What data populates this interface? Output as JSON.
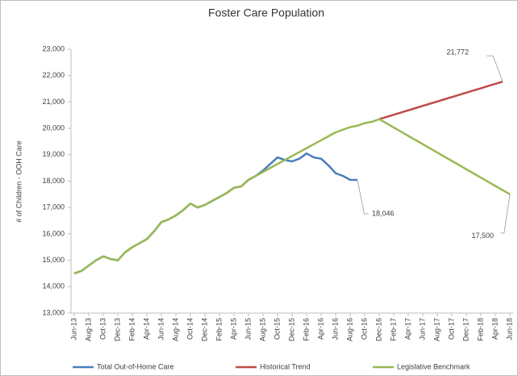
{
  "chart_data": {
    "type": "line",
    "title": "Foster Care Population",
    "y_label": "# of Children - OOH Care",
    "categories": [
      "Jun-13",
      null,
      "Aug-13",
      null,
      "Oct-13",
      null,
      "Dec-13",
      null,
      "Feb-14",
      null,
      "Apr-14",
      null,
      "Jun-14",
      null,
      "Aug-14",
      null,
      "Oct-14",
      null,
      "Dec-14",
      null,
      "Feb-15",
      null,
      "Apr-15",
      null,
      "Jun-15",
      null,
      "Aug-15",
      null,
      "Oct-15",
      null,
      "Dec-15",
      null,
      "Feb-16",
      null,
      "Apr-16",
      null,
      "Jun-16",
      null,
      "Aug-16",
      null,
      "Oct-16",
      null,
      "Dec-16",
      null,
      "Feb-17",
      null,
      "Apr-17",
      null,
      "Jun-17",
      null,
      "Aug-17",
      null,
      "Oct-17",
      null,
      "Dec-17",
      null,
      "Feb-18",
      null,
      "Apr-18",
      null,
      "Jun-18"
    ],
    "series": [
      {
        "name": "Total Out-of-Home Care",
        "color": "#4a7ebb",
        "values": [
          14500,
          14600,
          14800,
          15000,
          15150,
          15050,
          15000,
          15300,
          15500,
          15650,
          15800,
          16100,
          16450,
          16550,
          16700,
          16900,
          17150,
          17000,
          17100,
          17250,
          17400,
          17550,
          17750,
          17800,
          18050,
          18200,
          18400,
          18650,
          18900,
          18800,
          18750,
          18850,
          19050,
          18900,
          18850,
          18600,
          18300,
          18200,
          18050,
          18046,
          null,
          null,
          null,
          null,
          null,
          null,
          null,
          null,
          null,
          null,
          null,
          null,
          null,
          null,
          null,
          null,
          null,
          null,
          null,
          null,
          null
        ],
        "value_labels": [
          null,
          null,
          null,
          null,
          null,
          null,
          null,
          null,
          null,
          null,
          null,
          null,
          null,
          null,
          null,
          null,
          null,
          null,
          null,
          null,
          null,
          null,
          null,
          null,
          null,
          null,
          null,
          null,
          null,
          null,
          null,
          null,
          null,
          null,
          null,
          null,
          null,
          null,
          null,
          "18,046",
          null,
          null,
          null,
          null,
          null,
          null,
          null,
          null,
          null,
          null,
          null,
          null,
          null,
          null,
          null,
          null,
          null,
          null,
          null,
          null,
          null
        ]
      },
      {
        "name": "Historical Trend",
        "color": "#be4b48",
        "values": [
          null,
          null,
          null,
          null,
          null,
          null,
          null,
          null,
          null,
          null,
          null,
          null,
          null,
          null,
          null,
          null,
          null,
          null,
          null,
          null,
          null,
          null,
          null,
          null,
          null,
          null,
          null,
          null,
          null,
          null,
          null,
          null,
          null,
          null,
          null,
          null,
          null,
          null,
          null,
          null,
          null,
          null,
          20350,
          20434,
          20517,
          20601,
          20685,
          20768,
          20852,
          20936,
          21019,
          21103,
          21187,
          21270,
          21354,
          21438,
          21521,
          21605,
          21689,
          21772,
          null
        ],
        "value_labels": [
          null,
          null,
          null,
          null,
          null,
          null,
          null,
          null,
          null,
          null,
          null,
          null,
          null,
          null,
          null,
          null,
          null,
          null,
          null,
          null,
          null,
          null,
          null,
          null,
          null,
          null,
          null,
          null,
          null,
          null,
          null,
          null,
          null,
          null,
          null,
          null,
          null,
          null,
          null,
          null,
          null,
          null,
          null,
          null,
          null,
          null,
          null,
          null,
          null,
          null,
          null,
          null,
          null,
          null,
          null,
          null,
          null,
          null,
          null,
          "21,772",
          null
        ]
      },
      {
        "name": "Legislative Benchmark",
        "color": "#98b954",
        "values": [
          14500,
          14600,
          14800,
          15000,
          15150,
          15050,
          15000,
          15300,
          15500,
          15650,
          15800,
          16100,
          16450,
          16550,
          16700,
          16900,
          17150,
          17000,
          17100,
          17250,
          17400,
          17550,
          17750,
          17800,
          18050,
          18200,
          18350,
          18500,
          18650,
          18800,
          18950,
          19100,
          19250,
          19400,
          19550,
          19700,
          19850,
          19950,
          20050,
          20100,
          20200,
          20250,
          20350,
          20192,
          20033,
          19875,
          19717,
          19558,
          19400,
          19242,
          19083,
          18925,
          18767,
          18608,
          18450,
          18292,
          18133,
          17975,
          17817,
          17658,
          17500
        ],
        "value_labels": [
          null,
          null,
          null,
          null,
          null,
          null,
          null,
          null,
          null,
          null,
          null,
          null,
          null,
          null,
          null,
          null,
          null,
          null,
          null,
          null,
          null,
          null,
          null,
          null,
          null,
          null,
          null,
          null,
          null,
          null,
          null,
          null,
          null,
          null,
          null,
          null,
          null,
          null,
          null,
          null,
          null,
          null,
          null,
          null,
          null,
          null,
          null,
          null,
          null,
          null,
          null,
          null,
          null,
          null,
          null,
          null,
          null,
          null,
          null,
          null,
          "17,500"
        ]
      }
    ],
    "ylim": [
      13000,
      23000
    ],
    "yticks": [
      {
        "value": 13000,
        "label": "13,000"
      },
      {
        "value": 14000,
        "label": "14,000"
      },
      {
        "value": 15000,
        "label": "15,000"
      },
      {
        "value": 16000,
        "label": "16,000"
      },
      {
        "value": 17000,
        "label": "17,000"
      },
      {
        "value": 18000,
        "label": "18,000"
      },
      {
        "value": 19000,
        "label": "19,000"
      },
      {
        "value": 20000,
        "label": "20,000"
      },
      {
        "value": 21000,
        "label": "21,000"
      },
      {
        "value": 22000,
        "label": "22,000"
      },
      {
        "value": 23000,
        "label": "23,000"
      }
    ],
    "grid": false,
    "legend": "bottom"
  }
}
